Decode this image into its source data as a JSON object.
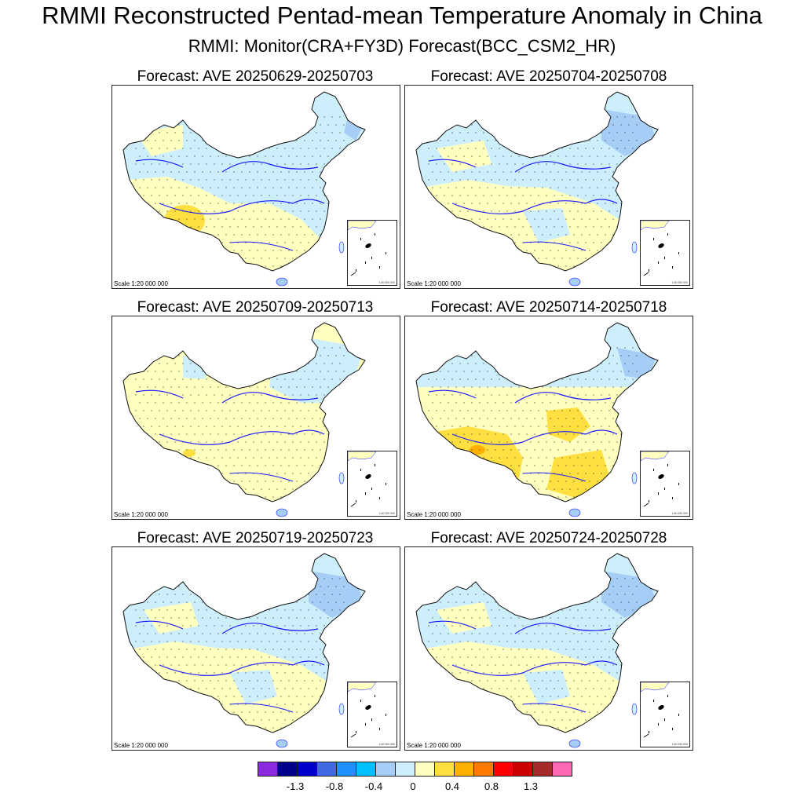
{
  "title": "RMMI Reconstructed Pentad-mean Temperature Anomaly in China",
  "subtitle": "RMMI: Monitor(CRA+FY3D)   Forecast(BCC_CSM2_HR)",
  "scale_label": "Scale 1:20 000 000",
  "inset_scale_label": "1:40 000 000",
  "panels": [
    {
      "title": "Forecast: AVE 20250629-20250703",
      "regime": "mixed-warm-southwest"
    },
    {
      "title": "Forecast: AVE 20250704-20250708",
      "regime": "cool-north-pale-south"
    },
    {
      "title": "Forecast: AVE 20250709-20250713",
      "regime": "pale-warm-most"
    },
    {
      "title": "Forecast: AVE 20250714-20250718",
      "regime": "warm-south-cool-northeast"
    },
    {
      "title": "Forecast: AVE 20250719-20250723",
      "regime": "cool-north-pale-south"
    },
    {
      "title": "Forecast: AVE 20250724-20250728",
      "regime": "cool-north-pale-south"
    }
  ],
  "colorbar": {
    "colors": [
      "#8a2be2",
      "#00008b",
      "#0000cd",
      "#4169e1",
      "#1e90ff",
      "#00bfff",
      "#a6cdf5",
      "#cdeffb",
      "#ffffc0",
      "#ffe040",
      "#ffb000",
      "#ff7a00",
      "#ff0000",
      "#cc0000",
      "#a52a2a",
      "#ff69b4"
    ],
    "labels": [
      "-1.3",
      "-0.8",
      "-0.4",
      "0",
      "0.4",
      "0.8",
      "1.3"
    ]
  },
  "colors": {
    "cool_light": "#cdeffb",
    "cool_mid": "#a6cdf5",
    "warm_pale": "#ffffc0",
    "warm_mid": "#ffe040",
    "warm_strong": "#ffb000",
    "river": "#1a1aff",
    "border": "#111111"
  }
}
